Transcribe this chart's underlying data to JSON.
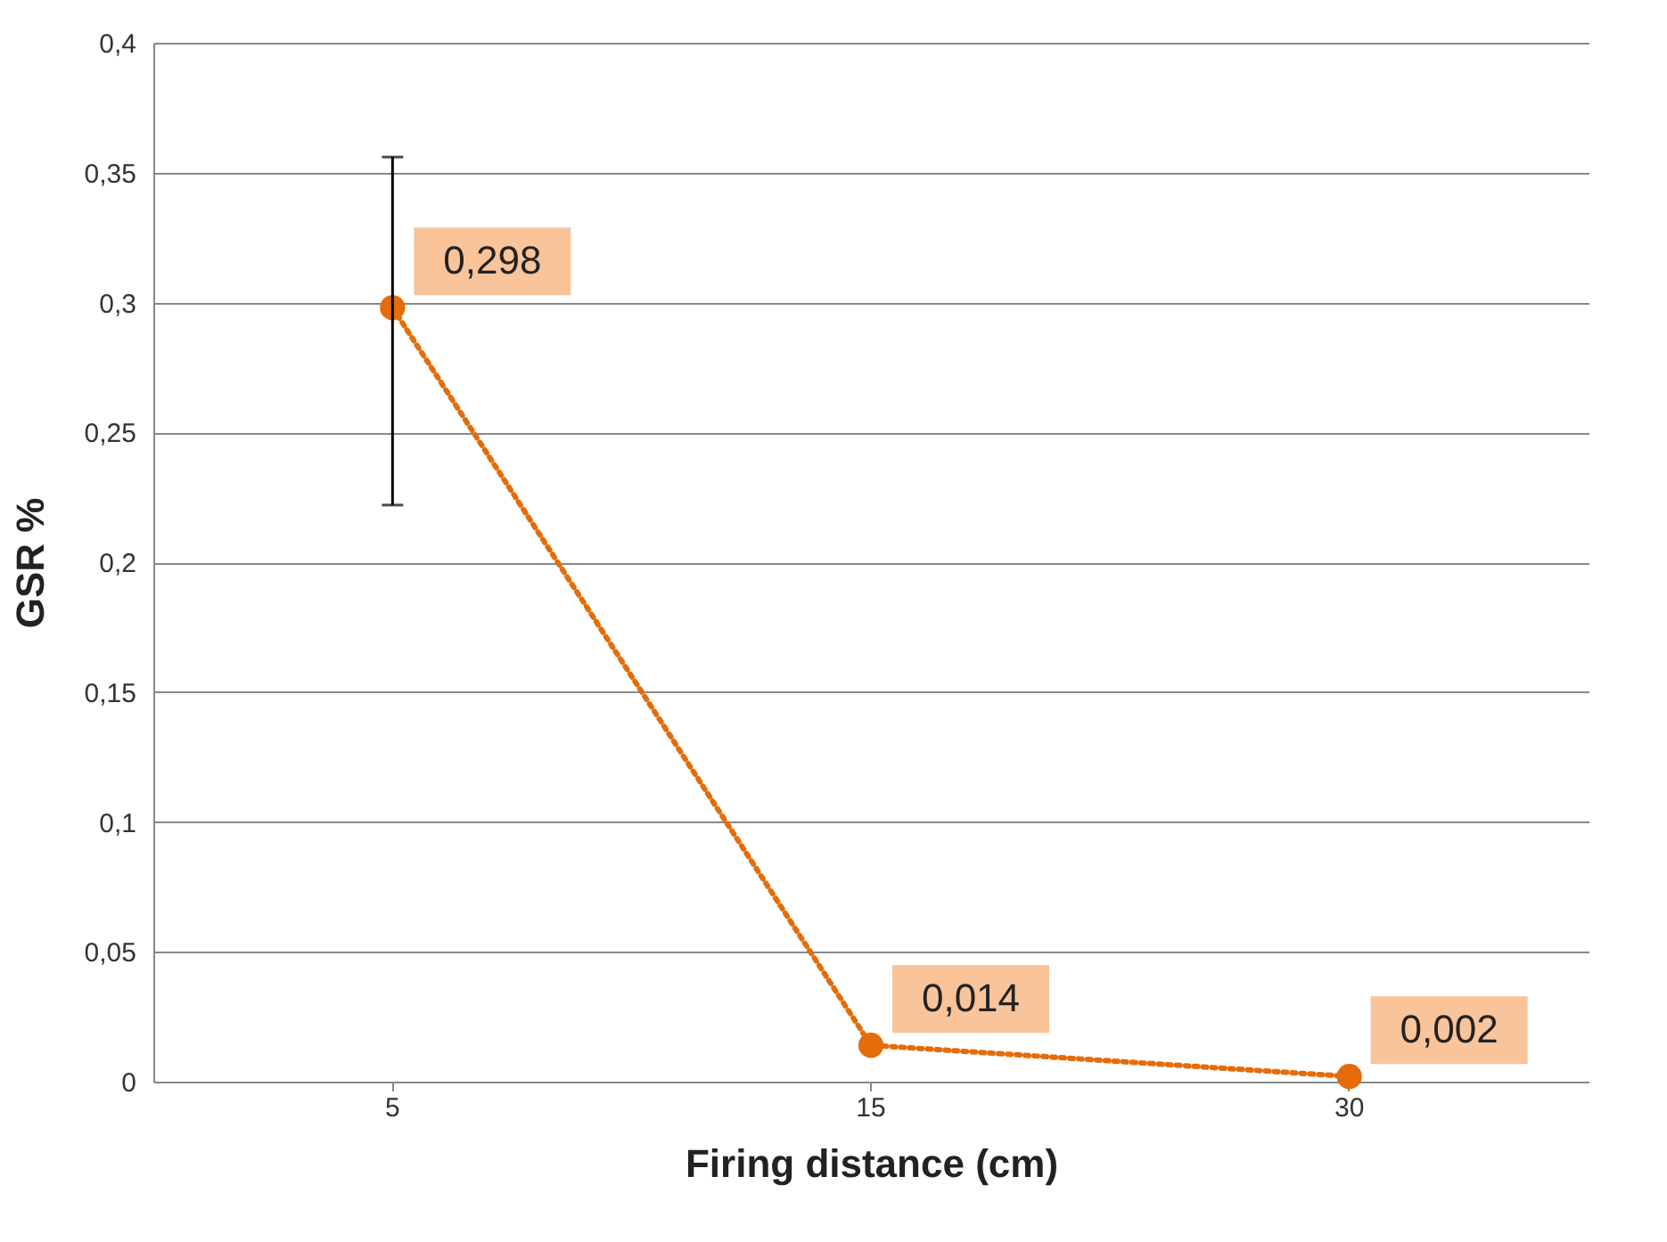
{
  "chart_data": {
    "type": "line",
    "xlabel": "Firing distance  (cm)",
    "ylabel": "GSR %",
    "categories": [
      "5",
      "15",
      "30"
    ],
    "series": [
      {
        "color": "#e46c0a",
        "values": [
          0.298,
          0.014,
          0.002
        ],
        "errors": [
          [
            0.222,
            0.356
          ],
          null,
          null
        ],
        "value_labels": [
          "0,298",
          "0,014",
          "0,002"
        ]
      }
    ],
    "ylim": [
      0,
      0.4
    ],
    "yticks": [
      {
        "value": 0,
        "label": "0"
      },
      {
        "value": 0.05,
        "label": "0,05"
      },
      {
        "value": 0.1,
        "label": "0,1"
      },
      {
        "value": 0.15,
        "label": "0,15"
      },
      {
        "value": 0.2,
        "label": "0,2"
      },
      {
        "value": 0.25,
        "label": "0,25"
      },
      {
        "value": 0.3,
        "label": "0,3"
      },
      {
        "value": 0.35,
        "label": "0,35"
      },
      {
        "value": 0.4,
        "label": "0,4"
      }
    ],
    "grid": "y",
    "marker": "circle",
    "line_style": "dotted"
  }
}
